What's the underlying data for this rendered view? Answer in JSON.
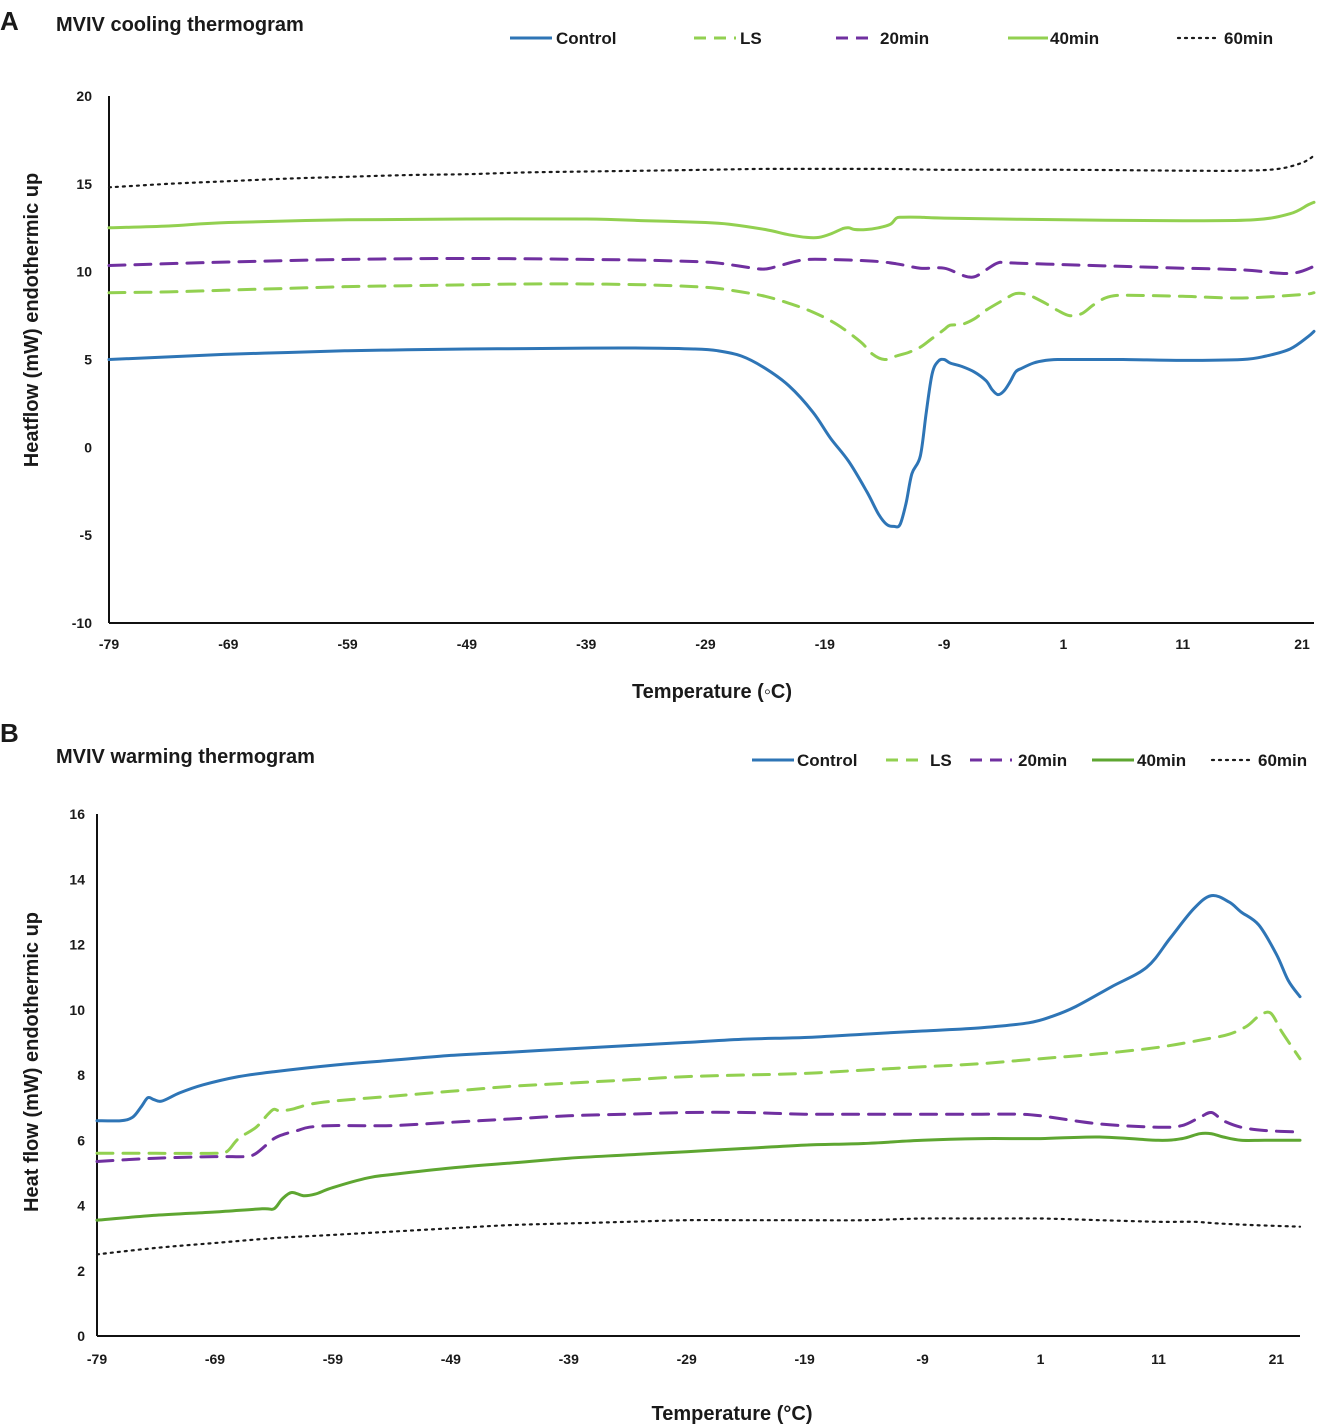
{
  "chart_data": [
    {
      "panel": "A",
      "type": "line",
      "title": "MVIV cooling thermogram",
      "xlabel": "Temperature (◦C)",
      "ylabel": "Heatflow (mW) endothermic up",
      "xlim": [
        -79,
        22
      ],
      "ylim": [
        -10,
        20
      ],
      "xticks": [
        -79,
        -69,
        -59,
        -49,
        -39,
        -29,
        -19,
        -9,
        1,
        11,
        21
      ],
      "yticks": [
        -10,
        -5,
        0,
        5,
        10,
        15,
        20
      ],
      "legend_position": "top",
      "series": [
        {
          "name": "Control",
          "color": "#2E75B6",
          "style": "solid",
          "x": [
            -79,
            -74,
            -69,
            -64,
            -59,
            -54,
            -49,
            -44,
            -39,
            -34,
            -30,
            -28,
            -26,
            -24,
            -22,
            -20,
            -18.5,
            -17,
            -15.5,
            -14.5,
            -13.8,
            -13.2,
            -12.7,
            -12.2,
            -11.7,
            -11,
            -10.5,
            -10,
            -9.5,
            -9,
            -8.5,
            -7.5,
            -6.5,
            -5.5,
            -5,
            -4.5,
            -4,
            -3.5,
            -3,
            -2.5,
            -1.5,
            -0.5,
            0.5,
            1,
            3,
            6,
            11,
            16,
            18,
            20,
            21.5,
            22
          ],
          "y": [
            5.0,
            5.15,
            5.3,
            5.4,
            5.5,
            5.55,
            5.6,
            5.62,
            5.65,
            5.65,
            5.6,
            5.5,
            5.2,
            4.5,
            3.5,
            2.0,
            0.5,
            -0.8,
            -2.5,
            -3.8,
            -4.4,
            -4.5,
            -4.4,
            -3.2,
            -1.5,
            -0.5,
            2.0,
            4.2,
            4.9,
            5.0,
            4.8,
            4.6,
            4.3,
            3.8,
            3.3,
            3.0,
            3.2,
            3.7,
            4.3,
            4.5,
            4.8,
            4.95,
            5.0,
            5.0,
            5.0,
            5.0,
            4.95,
            5.0,
            5.2,
            5.6,
            6.3,
            6.6
          ]
        },
        {
          "name": "LS",
          "color": "#92D050",
          "style": "dashed",
          "x": [
            -79,
            -74,
            -69,
            -64,
            -59,
            -54,
            -49,
            -44,
            -39,
            -34,
            -30,
            -28,
            -26,
            -24,
            -22,
            -20,
            -18,
            -16,
            -15,
            -14,
            -13,
            -12,
            -11,
            -10,
            -9,
            -8.5,
            -7.5,
            -6.5,
            -5.5,
            -4,
            -3,
            -2,
            -1.5,
            -0.5,
            0.5,
            1.5,
            2.5,
            3.5,
            4.5,
            5.5,
            7,
            11,
            16,
            21,
            22
          ],
          "y": [
            8.8,
            8.85,
            8.95,
            9.05,
            9.15,
            9.2,
            9.25,
            9.3,
            9.3,
            9.25,
            9.15,
            9.05,
            8.85,
            8.6,
            8.2,
            7.7,
            7.0,
            6.0,
            5.3,
            5.0,
            5.2,
            5.4,
            5.7,
            6.2,
            6.7,
            6.95,
            7.0,
            7.3,
            7.8,
            8.4,
            8.75,
            8.7,
            8.55,
            8.2,
            7.8,
            7.5,
            7.6,
            8.1,
            8.5,
            8.65,
            8.65,
            8.6,
            8.5,
            8.7,
            8.8
          ]
        },
        {
          "name": "20min",
          "color": "#7030A0",
          "style": "dashed",
          "x": [
            -79,
            -69,
            -59,
            -49,
            -39,
            -34,
            -29,
            -27,
            -25,
            -24,
            -23,
            -21,
            -19,
            -15,
            -13,
            -11,
            -9,
            -7.5,
            -6.5,
            -5.5,
            -4.5,
            -3.5,
            1,
            6,
            11,
            16,
            20,
            22
          ],
          "y": [
            10.35,
            10.55,
            10.7,
            10.75,
            10.7,
            10.65,
            10.55,
            10.4,
            10.2,
            10.15,
            10.3,
            10.65,
            10.7,
            10.6,
            10.45,
            10.2,
            10.2,
            9.8,
            9.7,
            10.1,
            10.5,
            10.5,
            10.4,
            10.3,
            10.2,
            10.1,
            9.9,
            10.3
          ]
        },
        {
          "name": "40min",
          "color": "#92D050",
          "style": "solid",
          "x": [
            -79,
            -74,
            -69,
            -59,
            -49,
            -39,
            -34,
            -29,
            -27,
            -24,
            -22,
            -20.5,
            -19.5,
            -18.5,
            -17.5,
            -17,
            -16.5,
            -15.5,
            -14.5,
            -13.5,
            -13,
            -12.5,
            -11,
            -9,
            1,
            11,
            17,
            20,
            21.5,
            22
          ],
          "y": [
            12.5,
            12.6,
            12.8,
            12.95,
            13.0,
            13.0,
            12.9,
            12.8,
            12.7,
            12.4,
            12.1,
            11.95,
            11.95,
            12.15,
            12.45,
            12.5,
            12.4,
            12.4,
            12.5,
            12.7,
            13.05,
            13.1,
            13.1,
            13.05,
            12.95,
            12.9,
            12.95,
            13.3,
            13.8,
            13.95
          ]
        },
        {
          "name": "60min",
          "color": "#1A1A1A",
          "style": "dotted",
          "x": [
            -79,
            -74,
            -69,
            -64,
            -59,
            -54,
            -49,
            -44,
            -39,
            -34,
            -29,
            -24,
            -19,
            -14,
            -9,
            1,
            11,
            16,
            19,
            21,
            22
          ],
          "y": [
            14.8,
            15.0,
            15.15,
            15.3,
            15.4,
            15.5,
            15.55,
            15.65,
            15.7,
            15.75,
            15.8,
            15.85,
            15.85,
            15.85,
            15.8,
            15.8,
            15.75,
            15.75,
            15.85,
            16.2,
            16.6
          ]
        }
      ]
    },
    {
      "panel": "B",
      "type": "line",
      "title": "MVIV warming thermogram",
      "xlabel": "Temperature (°C)",
      "ylabel": "Heat flow (mW) endothermic up",
      "xlim": [
        -79,
        23
      ],
      "ylim": [
        0,
        16
      ],
      "xticks": [
        -79,
        -69,
        -59,
        -49,
        -39,
        -29,
        -19,
        -9,
        1,
        11,
        21
      ],
      "yticks": [
        0,
        2,
        4,
        6,
        8,
        10,
        12,
        14,
        16
      ],
      "legend_position": "top-right",
      "series": [
        {
          "name": "Control",
          "color": "#2E75B6",
          "style": "solid",
          "x": [
            -79,
            -77,
            -76,
            -75.3,
            -74.7,
            -74.2,
            -73.5,
            -72,
            -70,
            -67,
            -64,
            -59,
            -54,
            -49,
            -44,
            -39,
            -34,
            -29,
            -24,
            -19,
            -14,
            -9,
            -4,
            0,
            2,
            4,
            7,
            10,
            12,
            14,
            15.5,
            17,
            18,
            19.5,
            21,
            22,
            23
          ],
          "y": [
            6.6,
            6.6,
            6.7,
            7.0,
            7.3,
            7.25,
            7.2,
            7.45,
            7.7,
            7.95,
            8.1,
            8.3,
            8.45,
            8.6,
            8.7,
            8.8,
            8.9,
            9.0,
            9.1,
            9.15,
            9.25,
            9.35,
            9.45,
            9.6,
            9.8,
            10.1,
            10.7,
            11.3,
            12.2,
            13.1,
            13.5,
            13.3,
            13.0,
            12.6,
            11.7,
            10.9,
            10.4
          ]
        },
        {
          "name": "LS",
          "color": "#92D050",
          "style": "dashed",
          "x": [
            -79,
            -74,
            -69,
            -68,
            -67,
            -65.5,
            -64.5,
            -64,
            -63.5,
            -62.5,
            -61,
            -59,
            -54,
            -49,
            -44,
            -39,
            -34,
            -29,
            -24,
            -19,
            -14,
            -9,
            -4,
            1,
            6,
            11,
            15,
            17,
            18.5,
            19.5,
            20.5,
            21.5,
            23
          ],
          "y": [
            5.6,
            5.6,
            5.6,
            5.65,
            6.05,
            6.4,
            6.8,
            6.95,
            6.9,
            6.95,
            7.1,
            7.2,
            7.35,
            7.5,
            7.65,
            7.75,
            7.85,
            7.95,
            8.0,
            8.05,
            8.15,
            8.25,
            8.35,
            8.5,
            8.65,
            8.85,
            9.1,
            9.25,
            9.5,
            9.8,
            9.9,
            9.3,
            8.5
          ]
        },
        {
          "name": "20min",
          "color": "#7030A0",
          "style": "dashed",
          "x": [
            -79,
            -74,
            -69,
            -66.5,
            -65.5,
            -64,
            -63,
            -62,
            -61,
            -59,
            -54,
            -49,
            -44,
            -39,
            -34,
            -29,
            -24,
            -19,
            -14,
            -9,
            -4,
            -1,
            1,
            6,
            11,
            13,
            14.5,
            15.5,
            16.5,
            18,
            20,
            23
          ],
          "y": [
            5.35,
            5.45,
            5.5,
            5.5,
            5.6,
            6.05,
            6.2,
            6.3,
            6.4,
            6.45,
            6.45,
            6.55,
            6.65,
            6.75,
            6.8,
            6.85,
            6.85,
            6.8,
            6.8,
            6.8,
            6.8,
            6.8,
            6.75,
            6.5,
            6.4,
            6.45,
            6.7,
            6.85,
            6.6,
            6.4,
            6.3,
            6.25
          ]
        },
        {
          "name": "40min",
          "color": "#5EA631",
          "style": "solid",
          "x": [
            -79,
            -74,
            -69,
            -65,
            -64,
            -63.3,
            -62.5,
            -61.5,
            -60.5,
            -59,
            -56,
            -54,
            -49,
            -44,
            -39,
            -34,
            -29,
            -24,
            -19,
            -14,
            -9,
            -4,
            1,
            6,
            11,
            13,
            14.5,
            15.5,
            16.5,
            18,
            20,
            23
          ],
          "y": [
            3.55,
            3.7,
            3.8,
            3.9,
            3.9,
            4.2,
            4.4,
            4.3,
            4.35,
            4.55,
            4.85,
            4.95,
            5.15,
            5.3,
            5.45,
            5.55,
            5.65,
            5.75,
            5.85,
            5.9,
            6.0,
            6.05,
            6.05,
            6.1,
            6.0,
            6.05,
            6.2,
            6.2,
            6.1,
            6.0,
            6.0,
            6.0
          ]
        },
        {
          "name": "60min",
          "color": "#1A1A1A",
          "style": "dotted",
          "x": [
            -79,
            -74,
            -69,
            -64,
            -59,
            -54,
            -49,
            -44,
            -39,
            -34,
            -29,
            -24,
            -19,
            -14,
            -9,
            -4,
            1,
            6,
            11,
            14,
            16,
            19,
            23
          ],
          "y": [
            2.5,
            2.7,
            2.85,
            3.0,
            3.1,
            3.2,
            3.3,
            3.4,
            3.45,
            3.5,
            3.55,
            3.55,
            3.55,
            3.55,
            3.6,
            3.6,
            3.6,
            3.55,
            3.5,
            3.5,
            3.45,
            3.4,
            3.35
          ]
        }
      ]
    }
  ]
}
